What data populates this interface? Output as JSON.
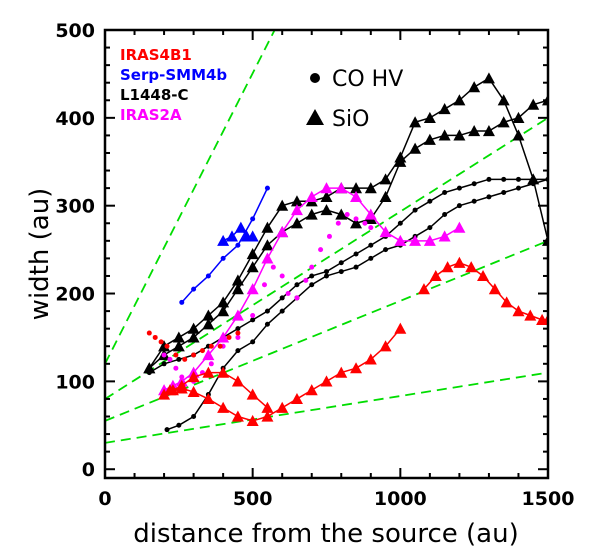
{
  "chart_data": {
    "type": "scatter",
    "xlabel": "distance from the source (au)",
    "ylabel": "width (au)",
    "xlim": [
      0,
      1500
    ],
    "ylim": [
      -10,
      500
    ],
    "xticks": [
      0,
      500,
      1000,
      1500
    ],
    "yticks": [
      0,
      100,
      200,
      300,
      400,
      500
    ],
    "grid": false,
    "legend": {
      "placement": "top-left",
      "entries": [
        {
          "label": "IRAS4B1",
          "color": "#ff0000"
        },
        {
          "label": "Serp-SMM4b",
          "color": "#0000ff"
        },
        {
          "label": "L1448-C",
          "color": "#000000"
        },
        {
          "label": "IRAS2A",
          "color": "#ff00ff"
        }
      ]
    },
    "marker_key": {
      "placement": "top-center",
      "entries": [
        {
          "marker": "circle",
          "label": "CO  HV"
        },
        {
          "marker": "triangle",
          "label": "SiO"
        }
      ]
    },
    "series": [
      {
        "group": "L1448-C",
        "tracer": "SiO",
        "color": "#000000",
        "marker": "triangle",
        "connected": true,
        "x": [
          150,
          200,
          250,
          300,
          350,
          400,
          450,
          500,
          550,
          600,
          650,
          700,
          750,
          800,
          850,
          900,
          950,
          1000,
          1050,
          1100,
          1150,
          1200,
          1250,
          1300,
          1350,
          1400,
          1450,
          1500
        ],
        "y": [
          115,
          140,
          150,
          160,
          175,
          190,
          215,
          245,
          275,
          300,
          305,
          305,
          310,
          320,
          320,
          320,
          330,
          355,
          395,
          400,
          410,
          420,
          435,
          445,
          420,
          380,
          330,
          260
        ]
      },
      {
        "group": "L1448-C",
        "tracer": "SiO",
        "color": "#000000",
        "marker": "triangle",
        "connected": true,
        "x": [
          150,
          200,
          250,
          300,
          350,
          400,
          450,
          500,
          550,
          600,
          650,
          700,
          750,
          800,
          850,
          900,
          950,
          1000,
          1050,
          1100,
          1150,
          1200,
          1250,
          1300,
          1350,
          1400,
          1450,
          1500
        ],
        "y": [
          115,
          130,
          140,
          150,
          165,
          180,
          205,
          230,
          255,
          270,
          280,
          290,
          295,
          290,
          280,
          285,
          310,
          350,
          365,
          375,
          380,
          380,
          385,
          385,
          395,
          400,
          415,
          420
        ]
      },
      {
        "group": "L1448-C",
        "tracer": "CO HV",
        "color": "#000000",
        "marker": "circle",
        "connected": true,
        "x": [
          150,
          200,
          250,
          300,
          350,
          400,
          450,
          500,
          550,
          600,
          650,
          700,
          750,
          800,
          850,
          900,
          950,
          1000,
          1050,
          1100,
          1150,
          1200,
          1250,
          1300,
          1350,
          1400,
          1450,
          1500
        ],
        "y": [
          110,
          120,
          125,
          130,
          140,
          150,
          160,
          170,
          180,
          195,
          210,
          220,
          225,
          235,
          245,
          255,
          265,
          280,
          295,
          305,
          315,
          320,
          325,
          330,
          330,
          330,
          330,
          330
        ]
      },
      {
        "group": "L1448-C",
        "tracer": "CO HV",
        "color": "#000000",
        "marker": "circle",
        "connected": true,
        "x": [
          210,
          250,
          300,
          350,
          400,
          450,
          500,
          550,
          600,
          650,
          700,
          750,
          800,
          850,
          900,
          950,
          1000,
          1050,
          1100,
          1150,
          1200,
          1250,
          1300,
          1350,
          1400,
          1450,
          1500
        ],
        "y": [
          45,
          50,
          60,
          85,
          115,
          135,
          145,
          165,
          180,
          195,
          210,
          220,
          225,
          230,
          240,
          250,
          255,
          265,
          275,
          290,
          300,
          305,
          310,
          315,
          320,
          325,
          330
        ]
      },
      {
        "group": "Serp-SMM4b",
        "tracer": "SiO",
        "color": "#0000ff",
        "marker": "triangle",
        "connected": true,
        "x": [
          400,
          430,
          460,
          480,
          500
        ],
        "y": [
          260,
          265,
          275,
          265,
          265
        ]
      },
      {
        "group": "Serp-SMM4b",
        "tracer": "CO HV",
        "color": "#0000ff",
        "marker": "circle",
        "connected": true,
        "x": [
          260,
          300,
          350,
          400,
          450,
          500,
          550
        ],
        "y": [
          190,
          205,
          220,
          240,
          255,
          285,
          320
        ]
      },
      {
        "group": "IRAS2A",
        "tracer": "SiO",
        "color": "#ff00ff",
        "marker": "triangle",
        "connected": true,
        "x": [
          200,
          230,
          260,
          300,
          350,
          400,
          450,
          500,
          550,
          600,
          650,
          700,
          750,
          800,
          850,
          900,
          950,
          1000,
          1050,
          1100,
          1150,
          1200
        ],
        "y": [
          90,
          95,
          100,
          110,
          130,
          150,
          175,
          205,
          240,
          270,
          295,
          310,
          320,
          320,
          310,
          290,
          270,
          260,
          260,
          260,
          265,
          275
        ]
      },
      {
        "group": "IRAS2A",
        "tracer": "CO HV",
        "color": "#ff00ff",
        "marker": "circle",
        "connected": false,
        "x": [
          200,
          220,
          240,
          260,
          300,
          330,
          360,
          400,
          450,
          500,
          540,
          570,
          600,
          620,
          650,
          680,
          700,
          730,
          760,
          790,
          820,
          850,
          880,
          900
        ],
        "y": [
          130,
          125,
          115,
          105,
          100,
          110,
          120,
          140,
          150,
          175,
          210,
          230,
          220,
          200,
          195,
          215,
          230,
          250,
          265,
          280,
          290,
          285,
          280,
          275
        ]
      },
      {
        "group": "IRAS4B1",
        "tracer": "SiO",
        "color": "#ff0000",
        "marker": "triangle",
        "connected": true,
        "x": [
          200,
          230,
          260,
          300,
          350,
          400,
          450,
          500,
          550
        ],
        "y": [
          85,
          90,
          95,
          105,
          110,
          110,
          100,
          85,
          70
        ]
      },
      {
        "group": "IRAS4B1",
        "tracer": "SiO",
        "color": "#ff0000",
        "marker": "triangle",
        "connected": true,
        "x": [
          220,
          260,
          300,
          350,
          400,
          450,
          500,
          550,
          600,
          650,
          700,
          750,
          800,
          850,
          900,
          950,
          1000
        ],
        "y": [
          90,
          92,
          88,
          80,
          70,
          60,
          55,
          60,
          70,
          80,
          90,
          100,
          110,
          115,
          125,
          140,
          160
        ]
      },
      {
        "group": "IRAS4B1",
        "tracer": "SiO",
        "color": "#ff0000",
        "marker": "triangle",
        "connected": true,
        "x": [
          1080,
          1120,
          1160,
          1200,
          1240,
          1280,
          1320,
          1360,
          1400,
          1440,
          1480,
          1500
        ],
        "y": [
          205,
          220,
          230,
          235,
          230,
          220,
          205,
          190,
          180,
          175,
          170,
          170
        ]
      },
      {
        "group": "IRAS4B1",
        "tracer": "CO HV",
        "color": "#ff0000",
        "marker": "circle",
        "connected": false,
        "x": [
          150,
          170,
          190,
          210,
          240,
          270,
          300,
          330,
          360,
          390,
          420,
          450
        ],
        "y": [
          155,
          150,
          145,
          140,
          130,
          125,
          130,
          135,
          140,
          140,
          150,
          155
        ]
      }
    ],
    "reference_lines": {
      "color": "#00dd00",
      "style": "dashed",
      "lines": [
        {
          "x": [
            0,
            650
          ],
          "y": [
            120,
            550
          ]
        },
        {
          "x": [
            0,
            1500
          ],
          "y": [
            80,
            400
          ]
        },
        {
          "x": [
            0,
            1500
          ],
          "y": [
            55,
            260
          ]
        },
        {
          "x": [
            0,
            1500
          ],
          "y": [
            30,
            110
          ]
        }
      ]
    }
  }
}
